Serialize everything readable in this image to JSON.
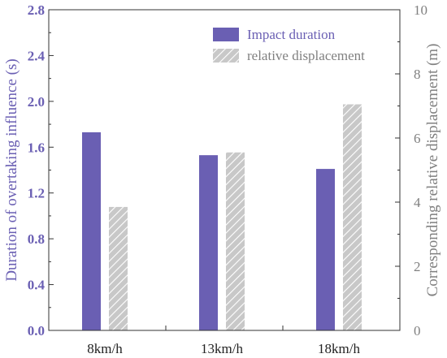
{
  "chart_data": {
    "type": "bar",
    "categories": [
      "8km/h",
      "13km/h",
      "18km/h"
    ],
    "series": [
      {
        "name": "Impact duration",
        "axis": "left",
        "values": [
          1.73,
          1.53,
          1.41
        ],
        "color": "#6a5fb3",
        "fill": "solid"
      },
      {
        "name": "relative displacement",
        "axis": "right",
        "values": [
          3.85,
          5.55,
          7.05
        ],
        "color": "#a8a8a8",
        "fill": "hatched"
      }
    ],
    "ylabel_left": "Duration of overtaking influence (s)",
    "ylabel_right": "Corresponding relative displacement (m)",
    "ylim_left": [
      0,
      2.8
    ],
    "ylim_right": [
      0,
      10
    ],
    "yticks_left": [
      "0.0",
      "0.4",
      "0.8",
      "1.2",
      "1.6",
      "2.0",
      "2.4",
      "2.8"
    ],
    "yticks_right": [
      "0",
      "2",
      "4",
      "6",
      "8",
      "10"
    ],
    "left_axis_color": "#6a5fb3",
    "right_axis_color": "#808080",
    "legend_position": "top-right",
    "grid": false
  }
}
